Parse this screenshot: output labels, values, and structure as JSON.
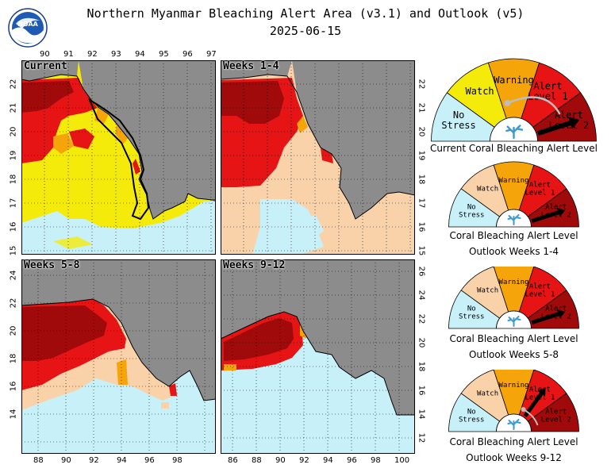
{
  "header": {
    "title": "Northern Myanmar Bleaching Alert Area (v3.1) and Outlook (v5)",
    "date": "2025-06-15"
  },
  "logo": {
    "text": "NOAA",
    "icon": "noaa-logo-icon"
  },
  "colors": {
    "no_stress": "#c8f0f8",
    "watch": "#f5eb0a",
    "watch_outlook": "#fad2aa",
    "warning": "#f5a50a",
    "alert1": "#e61414",
    "alert2": "#a00a0a",
    "land": "#8c8c8c"
  },
  "panels": [
    {
      "label": "Current",
      "top_ticks": [
        "90",
        "91",
        "92",
        "93",
        "94",
        "95",
        "96",
        "97"
      ],
      "left_ticks": [
        "22",
        "21",
        "20",
        "19",
        "18",
        "17",
        "16",
        "15"
      ]
    },
    {
      "label": "Weeks 1-4",
      "right_ticks": [
        "22",
        "21",
        "20",
        "19",
        "18",
        "17",
        "16",
        "15"
      ]
    },
    {
      "label": "Weeks 5-8",
      "left_ticks": [
        "24",
        "22",
        "20",
        "18",
        "16",
        "14"
      ],
      "bottom_ticks": [
        "88",
        "90",
        "92",
        "94",
        "96",
        "98"
      ]
    },
    {
      "label": "Weeks 9-12",
      "right_ticks": [
        "26",
        "24",
        "22",
        "20",
        "18",
        "16",
        "14",
        "12"
      ],
      "bottom_ticks": [
        "86",
        "88",
        "90",
        "92",
        "94",
        "96",
        "98",
        "100"
      ]
    }
  ],
  "gauges": [
    {
      "caption1": "Current Coral Bleaching Alert Level",
      "caption2": "",
      "level": "Alert Level 2",
      "segments": [
        "No Stress",
        "Watch",
        "Warning",
        "Alert Level 1",
        "Alert Level 2"
      ]
    },
    {
      "caption1": "Coral Bleaching Alert Level",
      "caption2": "Outlook Weeks 1-4",
      "level": "Alert Level 2",
      "segments": [
        "No Stress",
        "Watch",
        "Warning",
        "Alert Level 1",
        "Alert Level 2"
      ]
    },
    {
      "caption1": "Coral Bleaching Alert Level",
      "caption2": "Outlook Weeks 5-8",
      "level": "Alert Level 2",
      "segments": [
        "No Stress",
        "Watch",
        "Warning",
        "Alert Level 1",
        "Alert Level 2"
      ]
    },
    {
      "caption1": "Coral Bleaching Alert Level",
      "caption2": "Outlook Weeks 9-12",
      "level": "Alert Level 1",
      "segments": [
        "No Stress",
        "Watch",
        "Warning",
        "Alert Level 1",
        "Alert Level 2"
      ]
    }
  ]
}
